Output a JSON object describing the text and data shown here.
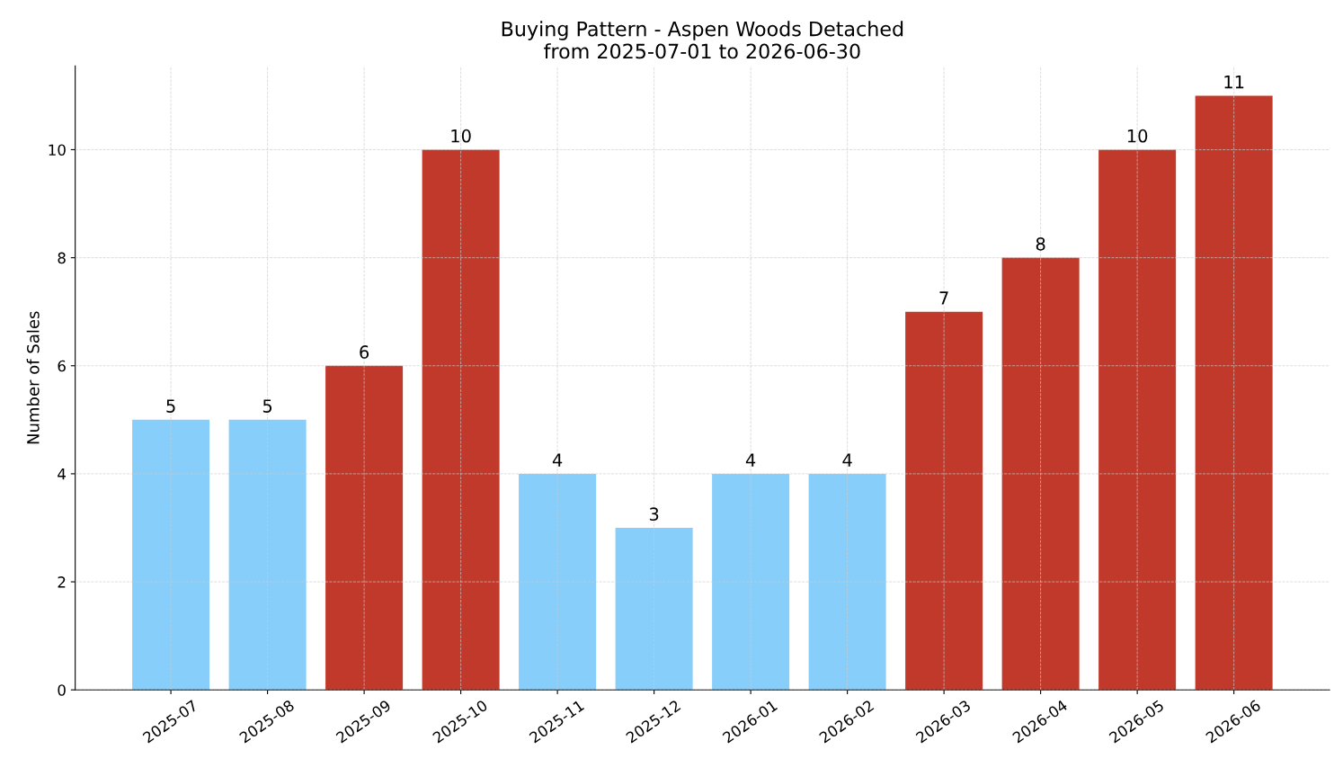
{
  "chart_data": {
    "type": "bar",
    "title": "Buying Pattern - Aspen Woods Detached\nfrom 2025-07-01 to 2026-06-30",
    "ylabel": "Number of Sales",
    "categories": [
      "2025-07",
      "2025-08",
      "2025-09",
      "2025-10",
      "2025-11",
      "2025-12",
      "2026-01",
      "2026-02",
      "2026-03",
      "2026-04",
      "2026-05",
      "2026-06"
    ],
    "values": [
      5,
      5,
      6,
      10,
      4,
      3,
      4,
      4,
      7,
      8,
      10,
      11
    ],
    "colors": [
      "#87cefa",
      "#87cefa",
      "#c0392b",
      "#c0392b",
      "#87cefa",
      "#87cefa",
      "#87cefa",
      "#87cefa",
      "#c0392b",
      "#c0392b",
      "#c0392b",
      "#c0392b"
    ],
    "ylim": [
      0,
      11.55
    ],
    "yticks": [
      0,
      2,
      4,
      6,
      8,
      10
    ],
    "grid": true,
    "data_labels": true
  }
}
